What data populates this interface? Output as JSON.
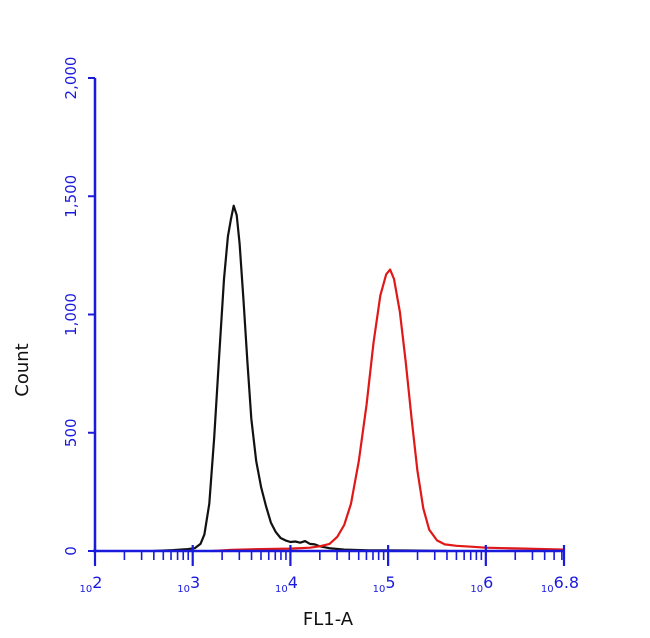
{
  "chart_data": {
    "type": "line",
    "title": "",
    "xlabel": "FL1-A",
    "ylabel": "Count",
    "x_scale": "log10",
    "xlim_exponent": [
      2,
      6.8
    ],
    "ylim": [
      0,
      2000
    ],
    "yticks": [
      {
        "value": 0,
        "label": "0"
      },
      {
        "value": 500,
        "label": "500"
      },
      {
        "value": 1000,
        "label": "1,000"
      },
      {
        "value": 1500,
        "label": "1,500"
      },
      {
        "value": 2000,
        "label": "2,000"
      }
    ],
    "xticks": [
      {
        "exponent": 2,
        "base": "10",
        "power": "2"
      },
      {
        "exponent": 3,
        "base": "10",
        "power": "3"
      },
      {
        "exponent": 4,
        "base": "10",
        "power": "4"
      },
      {
        "exponent": 5,
        "base": "10",
        "power": "5"
      },
      {
        "exponent": 6,
        "base": "10",
        "power": "6"
      },
      {
        "exponent": 6.8,
        "base": "10",
        "power": "6.8"
      }
    ],
    "grid": false,
    "axis_color": "#1a1adc",
    "series": [
      {
        "color": "#111111",
        "points": [
          [
            2.6,
            0
          ],
          [
            2.8,
            4
          ],
          [
            2.95,
            8
          ],
          [
            3.02,
            12
          ],
          [
            3.08,
            30
          ],
          [
            3.12,
            70
          ],
          [
            3.17,
            200
          ],
          [
            3.22,
            480
          ],
          [
            3.27,
            820
          ],
          [
            3.32,
            1150
          ],
          [
            3.36,
            1330
          ],
          [
            3.39,
            1400
          ],
          [
            3.42,
            1460
          ],
          [
            3.45,
            1420
          ],
          [
            3.48,
            1300
          ],
          [
            3.52,
            1060
          ],
          [
            3.56,
            800
          ],
          [
            3.6,
            560
          ],
          [
            3.65,
            380
          ],
          [
            3.7,
            270
          ],
          [
            3.75,
            190
          ],
          [
            3.8,
            120
          ],
          [
            3.85,
            80
          ],
          [
            3.9,
            55
          ],
          [
            3.95,
            45
          ],
          [
            4.0,
            38
          ],
          [
            4.05,
            40
          ],
          [
            4.1,
            35
          ],
          [
            4.15,
            42
          ],
          [
            4.2,
            30
          ],
          [
            4.25,
            28
          ],
          [
            4.3,
            20
          ],
          [
            4.4,
            12
          ],
          [
            4.55,
            6
          ],
          [
            4.8,
            3
          ],
          [
            5.2,
            2
          ],
          [
            5.6,
            0
          ]
        ]
      },
      {
        "color": "#e01818",
        "points": [
          [
            3.2,
            0
          ],
          [
            3.4,
            5
          ],
          [
            3.7,
            8
          ],
          [
            4.0,
            10
          ],
          [
            4.2,
            14
          ],
          [
            4.3,
            20
          ],
          [
            4.4,
            30
          ],
          [
            4.48,
            60
          ],
          [
            4.55,
            110
          ],
          [
            4.62,
            200
          ],
          [
            4.7,
            380
          ],
          [
            4.78,
            620
          ],
          [
            4.85,
            880
          ],
          [
            4.92,
            1080
          ],
          [
            4.98,
            1170
          ],
          [
            5.02,
            1190
          ],
          [
            5.06,
            1150
          ],
          [
            5.12,
            1010
          ],
          [
            5.18,
            800
          ],
          [
            5.24,
            560
          ],
          [
            5.3,
            340
          ],
          [
            5.36,
            180
          ],
          [
            5.42,
            90
          ],
          [
            5.5,
            45
          ],
          [
            5.58,
            28
          ],
          [
            5.7,
            22
          ],
          [
            5.85,
            18
          ],
          [
            6.0,
            14
          ],
          [
            6.2,
            12
          ],
          [
            6.4,
            10
          ],
          [
            6.6,
            8
          ],
          [
            6.8,
            6
          ]
        ]
      }
    ]
  }
}
